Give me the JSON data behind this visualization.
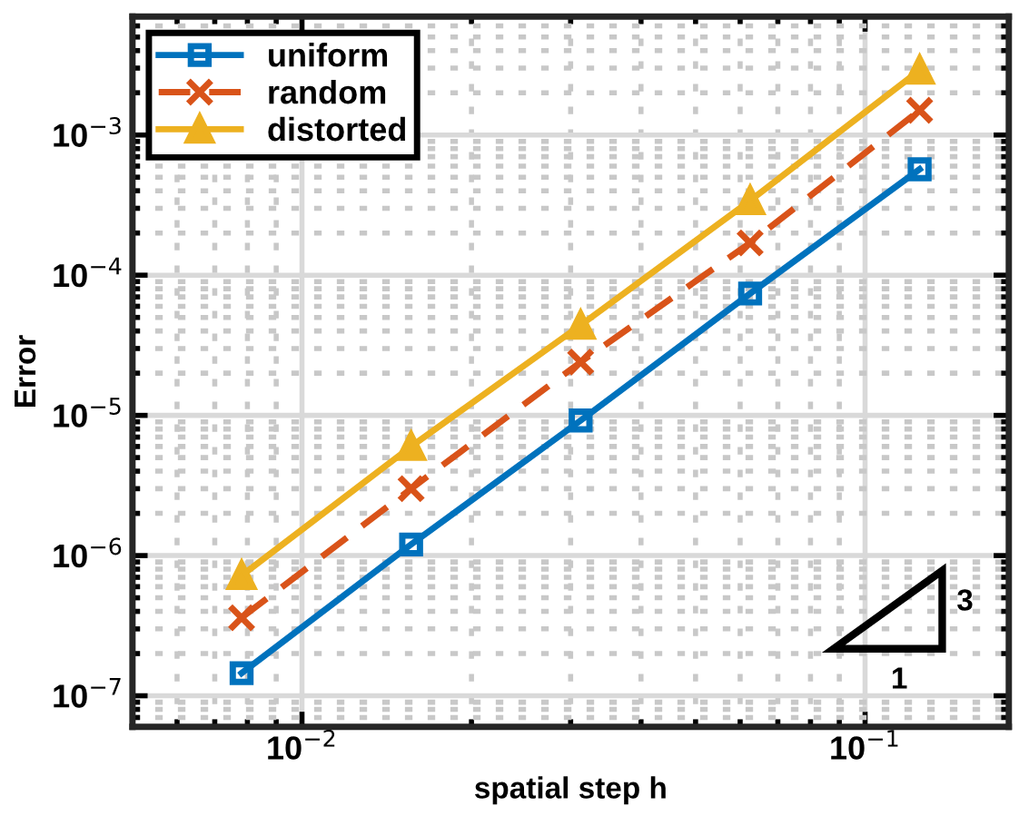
{
  "chart_data": {
    "type": "line",
    "xlabel": "spatial step h",
    "ylabel": "Error",
    "log": "xy",
    "grid": true,
    "legend": "top left",
    "x": [
      0.0078125,
      0.015625,
      0.03125,
      0.0625,
      0.125
    ],
    "xlim": [
      0.005,
      0.18
    ],
    "ylim": [
      6e-08,
      0.007
    ],
    "xticks": [
      {
        "value": 0.01,
        "label": "10$^{−2}$"
      },
      {
        "value": 0.1,
        "label": "10$^{−1}$"
      }
    ],
    "yticks": [
      {
        "value": 1e-07,
        "label": "10$^{−7}$"
      },
      {
        "value": 1e-06,
        "label": "10$^{−6}$"
      },
      {
        "value": 1e-05,
        "label": "10$^{−5}$"
      },
      {
        "value": 0.0001,
        "label": "10$^{−4}$"
      },
      {
        "value": 0.001,
        "label": "10$^{−3}$"
      }
    ],
    "series": [
      {
        "name": "uniform",
        "color": "#0072bd",
        "marker": "square",
        "line_style": "solid",
        "values": [
          1.45e-07,
          1.2e-06,
          9.2e-06,
          7.4e-05,
          0.00057
        ]
      },
      {
        "name": "random",
        "color": "#d95319",
        "marker": "cross",
        "line_style": "dashed",
        "values": [
          3.6e-07,
          3e-06,
          2.4e-05,
          0.00017,
          0.0015
        ]
      },
      {
        "name": "distorted",
        "color": "#edb120",
        "marker": "triangle",
        "line_style": "solid",
        "values": [
          7.2e-07,
          6e-06,
          4.4e-05,
          0.00034,
          0.0029
        ]
      }
    ],
    "annotations": [
      "3",
      "1"
    ]
  }
}
